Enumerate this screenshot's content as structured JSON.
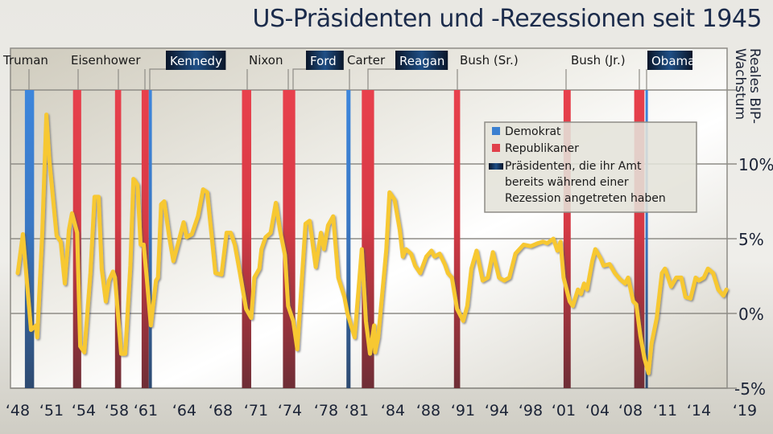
{
  "title": "US-Präsidenten und -Rezessionen seit 1945",
  "colors": {
    "democrat": "#3a7fd0",
    "republican": "#e0404a",
    "line": "#f7c830",
    "title": "#1b2b4b",
    "dark_label": "#0d1b33"
  },
  "chart_data": {
    "type": "line",
    "title": "US-Präsidenten und -Rezessionen seit 1945",
    "ylabel": "Reales BIP-Wachstum",
    "xlabel": "",
    "ylim": [
      -5,
      15
    ],
    "y_axis_position": "right",
    "grid": true,
    "x_ticks": [
      "‘48",
      "‘51",
      "‘54",
      "‘58",
      "‘61",
      "‘64",
      "‘68",
      "‘71",
      "‘74",
      "‘78",
      "‘81",
      "‘84",
      "‘88",
      "‘91",
      "‘94",
      "‘98",
      "‘01",
      "‘04",
      "‘08",
      "‘11",
      "‘14",
      "‘19"
    ],
    "y_ticks": [
      {
        "v": 10,
        "label": "10%"
      },
      {
        "v": 5,
        "label": "5%"
      },
      {
        "v": 0,
        "label": "0%"
      },
      {
        "v": -5,
        "label": "-5%"
      }
    ],
    "legend": {
      "placement": "top-right",
      "entries": [
        {
          "label": "Demokrat",
          "swatch": "democrat"
        },
        {
          "label": "Republikaner",
          "swatch": "republican"
        },
        {
          "label_lines": [
            "Präsidenten, die ihr Amt",
            "bereits während einer",
            "Rezession angetreten haben"
          ],
          "swatch": "dark"
        }
      ]
    },
    "presidents": [
      {
        "name": "Truman",
        "party": "democrat",
        "took_office_in_recession": false
      },
      {
        "name": "Eisenhower",
        "party": "republican",
        "took_office_in_recession": false
      },
      {
        "name": "Kennedy",
        "party": "democrat",
        "took_office_in_recession": true
      },
      {
        "name": "Nixon",
        "party": "republican",
        "took_office_in_recession": false
      },
      {
        "name": "Ford",
        "party": "republican",
        "took_office_in_recession": true
      },
      {
        "name": "Carter",
        "party": "democrat",
        "took_office_in_recession": false
      },
      {
        "name": "Reagan",
        "party": "republican",
        "took_office_in_recession": true
      },
      {
        "name": "Bush (Sr.)",
        "party": "republican",
        "took_office_in_recession": false
      },
      {
        "name": "Bush (Jr.)",
        "party": "republican",
        "took_office_in_recession": false
      },
      {
        "name": "Obama",
        "party": "democrat",
        "took_office_in_recession": true
      }
    ],
    "recessions": [
      {
        "start": 1948.7,
        "end": 1949.6,
        "party": "democrat"
      },
      {
        "start": 1953.4,
        "end": 1954.2,
        "party": "republican"
      },
      {
        "start": 1957.5,
        "end": 1958.1,
        "party": "republican"
      },
      {
        "start": 1960.1,
        "end": 1960.8,
        "party": "republican"
      },
      {
        "start": 1960.8,
        "end": 1961.1,
        "party": "democrat"
      },
      {
        "start": 1969.9,
        "end": 1970.8,
        "party": "republican"
      },
      {
        "start": 1973.9,
        "end": 1975.1,
        "party": "republican"
      },
      {
        "start": 1980.1,
        "end": 1980.5,
        "party": "democrat"
      },
      {
        "start": 1981.6,
        "end": 1982.8,
        "party": "republican"
      },
      {
        "start": 1990.6,
        "end": 1991.2,
        "party": "republican"
      },
      {
        "start": 2001.3,
        "end": 2002.0,
        "party": "republican"
      },
      {
        "start": 2008.2,
        "end": 2009.2,
        "party": "republican"
      },
      {
        "start": 2009.3,
        "end": 2009.5,
        "party": "democrat"
      }
    ],
    "series": [
      {
        "points": [
          [
            1948.0,
            2.7
          ],
          [
            1948.5,
            5.3
          ],
          [
            1949.3,
            -1.1
          ],
          [
            1949.8,
            -0.8
          ],
          [
            1949.9,
            -1.6
          ],
          [
            1950.4,
            5.4
          ],
          [
            1950.8,
            13.3
          ],
          [
            1951.1,
            10.2
          ],
          [
            1951.8,
            5.2
          ],
          [
            1952.2,
            4.8
          ],
          [
            1952.6,
            2.0
          ],
          [
            1953.0,
            5.6
          ],
          [
            1953.3,
            6.7
          ],
          [
            1953.8,
            5.4
          ],
          [
            1954.1,
            -2.2
          ],
          [
            1954.5,
            -2.6
          ],
          [
            1955.1,
            2.7
          ],
          [
            1955.5,
            7.8
          ],
          [
            1955.9,
            7.8
          ],
          [
            1956.2,
            3.0
          ],
          [
            1956.6,
            0.8
          ],
          [
            1956.9,
            2.2
          ],
          [
            1957.3,
            2.8
          ],
          [
            1957.5,
            2.4
          ],
          [
            1958.1,
            -2.7
          ],
          [
            1958.5,
            -2.7
          ],
          [
            1959.0,
            3.2
          ],
          [
            1959.3,
            9.0
          ],
          [
            1959.7,
            8.6
          ],
          [
            1960.0,
            4.6
          ],
          [
            1960.3,
            4.6
          ],
          [
            1960.6,
            2.4
          ],
          [
            1961.0,
            -0.8
          ],
          [
            1961.5,
            2.2
          ],
          [
            1961.7,
            2.4
          ],
          [
            1962.0,
            7.3
          ],
          [
            1962.3,
            7.5
          ],
          [
            1962.8,
            5.1
          ],
          [
            1963.2,
            3.5
          ],
          [
            1963.7,
            4.8
          ],
          [
            1964.2,
            6.1
          ],
          [
            1964.5,
            5.1
          ],
          [
            1965.0,
            5.3
          ],
          [
            1965.6,
            6.5
          ],
          [
            1966.1,
            8.3
          ],
          [
            1966.5,
            8.1
          ],
          [
            1967.0,
            4.8
          ],
          [
            1967.3,
            2.7
          ],
          [
            1967.9,
            2.6
          ],
          [
            1968.4,
            5.4
          ],
          [
            1968.8,
            5.4
          ],
          [
            1969.2,
            4.6
          ],
          [
            1969.7,
            2.7
          ],
          [
            1970.3,
            0.3
          ],
          [
            1970.8,
            -0.3
          ],
          [
            1971.1,
            2.4
          ],
          [
            1971.6,
            3.0
          ],
          [
            1971.8,
            4.3
          ],
          [
            1972.2,
            5.1
          ],
          [
            1972.7,
            5.4
          ],
          [
            1973.2,
            7.4
          ],
          [
            1973.6,
            5.6
          ],
          [
            1974.1,
            3.9
          ],
          [
            1974.4,
            0.5
          ],
          [
            1974.9,
            -0.5
          ],
          [
            1975.3,
            -2.4
          ],
          [
            1976.1,
            6.0
          ],
          [
            1976.5,
            6.2
          ],
          [
            1977.1,
            3.1
          ],
          [
            1977.6,
            5.4
          ],
          [
            1977.9,
            4.3
          ],
          [
            1978.3,
            5.9
          ],
          [
            1978.8,
            6.5
          ],
          [
            1979.3,
            2.4
          ],
          [
            1979.9,
            1.1
          ],
          [
            1980.2,
            0.0
          ],
          [
            1980.9,
            -1.6
          ],
          [
            1981.6,
            4.3
          ],
          [
            1982.0,
            -0.5
          ],
          [
            1982.4,
            -2.7
          ],
          [
            1982.8,
            -0.8
          ],
          [
            1982.9,
            -2.6
          ],
          [
            1983.2,
            -1.6
          ],
          [
            1984.0,
            4.3
          ],
          [
            1984.3,
            8.1
          ],
          [
            1984.8,
            7.6
          ],
          [
            1985.3,
            5.6
          ],
          [
            1985.6,
            3.8
          ],
          [
            1985.9,
            4.3
          ],
          [
            1986.4,
            4.0
          ],
          [
            1986.8,
            3.2
          ],
          [
            1987.3,
            2.7
          ],
          [
            1987.9,
            3.8
          ],
          [
            1988.4,
            4.2
          ],
          [
            1988.7,
            3.8
          ],
          [
            1989.2,
            4.0
          ],
          [
            1989.7,
            3.3
          ],
          [
            1990.0,
            2.7
          ],
          [
            1990.4,
            2.4
          ],
          [
            1990.9,
            0.3
          ],
          [
            1991.5,
            -0.5
          ],
          [
            1991.9,
            0.5
          ],
          [
            1992.3,
            3.0
          ],
          [
            1992.8,
            4.2
          ],
          [
            1993.4,
            2.2
          ],
          [
            1993.9,
            2.4
          ],
          [
            1994.4,
            4.1
          ],
          [
            1995.0,
            2.4
          ],
          [
            1995.5,
            2.2
          ],
          [
            1996.0,
            2.4
          ],
          [
            1996.6,
            4.0
          ],
          [
            1997.4,
            4.6
          ],
          [
            1998.1,
            4.5
          ],
          [
            1998.8,
            4.7
          ],
          [
            1999.3,
            4.8
          ],
          [
            1999.7,
            4.7
          ],
          [
            2000.3,
            5.0
          ],
          [
            2000.7,
            4.2
          ],
          [
            2001.0,
            4.8
          ],
          [
            2001.3,
            2.4
          ],
          [
            2001.9,
            0.8
          ],
          [
            2002.2,
            0.5
          ],
          [
            2002.7,
            1.6
          ],
          [
            2003.0,
            1.3
          ],
          [
            2003.3,
            2.0
          ],
          [
            2003.6,
            1.6
          ],
          [
            2004.1,
            3.5
          ],
          [
            2004.4,
            4.3
          ],
          [
            2004.9,
            3.7
          ],
          [
            2005.2,
            3.2
          ],
          [
            2005.8,
            3.3
          ],
          [
            2006.3,
            2.7
          ],
          [
            2006.8,
            2.3
          ],
          [
            2007.3,
            2.0
          ],
          [
            2007.6,
            2.4
          ],
          [
            2008.1,
            0.8
          ],
          [
            2008.4,
            0.6
          ],
          [
            2008.8,
            -1.5
          ],
          [
            2009.2,
            -3.0
          ],
          [
            2009.6,
            -4.0
          ],
          [
            2009.9,
            -2.0
          ],
          [
            2010.4,
            -0.3
          ],
          [
            2010.9,
            2.7
          ],
          [
            2011.2,
            3.0
          ],
          [
            2011.8,
            1.8
          ],
          [
            2012.3,
            2.4
          ],
          [
            2012.8,
            2.4
          ],
          [
            2013.2,
            1.1
          ],
          [
            2013.7,
            1.0
          ],
          [
            2014.2,
            2.4
          ],
          [
            2014.5,
            2.2
          ],
          [
            2015.0,
            2.4
          ],
          [
            2015.4,
            3.0
          ],
          [
            2015.9,
            2.7
          ],
          [
            2016.4,
            1.6
          ],
          [
            2016.9,
            1.2
          ],
          [
            2017.2,
            1.6
          ]
        ]
      }
    ]
  }
}
